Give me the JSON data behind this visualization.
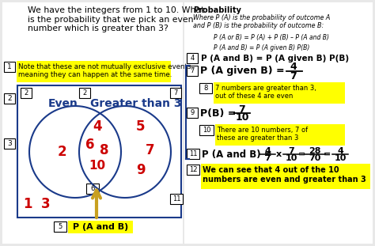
{
  "bg_color": "#e8e8e8",
  "title_question": "We have the integers from 1 to 10. What\nis the probability that we pick an even\nnumber which is greater than 3?",
  "note1_text": "Note that these are not mutually exclusive events,\nmeaning they can happen at the same time.",
  "note1_bg": "#ffff00",
  "venn_left_label": "Even",
  "venn_right_label": "Greater than 3",
  "pandB_label": "P (A and B)",
  "pandB_bg": "#ffff00",
  "prob_title": "Probability",
  "prob_intro1": "Where P (A) is the probability of outcome A\nand P (B) is the probability of outcome B:",
  "prob_formula1": "P (A or B) = P (A) + P (B) – P (A and B)",
  "prob_formula2": "P (A and B) = P (A given B) P(B)",
  "label4_formula": "P (A and B) = P (A given B) P(B)",
  "label8_note": "7 numbers are greater than 3,\nout of these 4 are even",
  "label8_bg": "#ffff00",
  "label10_note": "There are 10 numbers, 7 of\nthese are greater than 3",
  "label10_bg": "#ffff00",
  "label12_note": "We can see that 4 out of the 10\nnumbers are even and greater than 3",
  "label12_bg": "#ffff00",
  "red_color": "#cc0000",
  "blue_color": "#1a3a8a",
  "arrow_color": "#c8a020",
  "black": "#000000",
  "white": "#ffffff"
}
